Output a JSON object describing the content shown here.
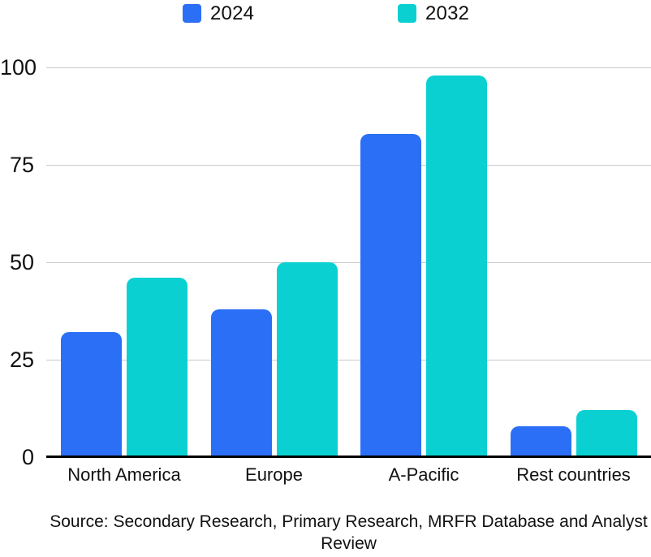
{
  "chart_data": {
    "type": "bar",
    "title": "",
    "categories": [
      "North America",
      "Europe",
      "A-Pacific",
      "Rest countries"
    ],
    "series": [
      {
        "name": "2024",
        "color": "#2B6FF6",
        "values": [
          32,
          38,
          83,
          8
        ]
      },
      {
        "name": "2032",
        "color": "#0AD0D2",
        "values": [
          46,
          50,
          98,
          12
        ]
      }
    ],
    "xlabel": "",
    "ylabel": "",
    "ylim": [
      0,
      100
    ],
    "yticks": [
      0,
      25,
      50,
      75,
      100
    ],
    "grid": true,
    "legend_position": "top"
  },
  "colors": {
    "series_2024": "#2B6FF6",
    "series_2032": "#0AD0D2",
    "gridline": "#cacaca",
    "axis": "#000000",
    "text": "#111111"
  },
  "source": {
    "line1": "Source: Secondary Research, Primary Research, MRFR Database and Analyst",
    "line2": "Review"
  }
}
